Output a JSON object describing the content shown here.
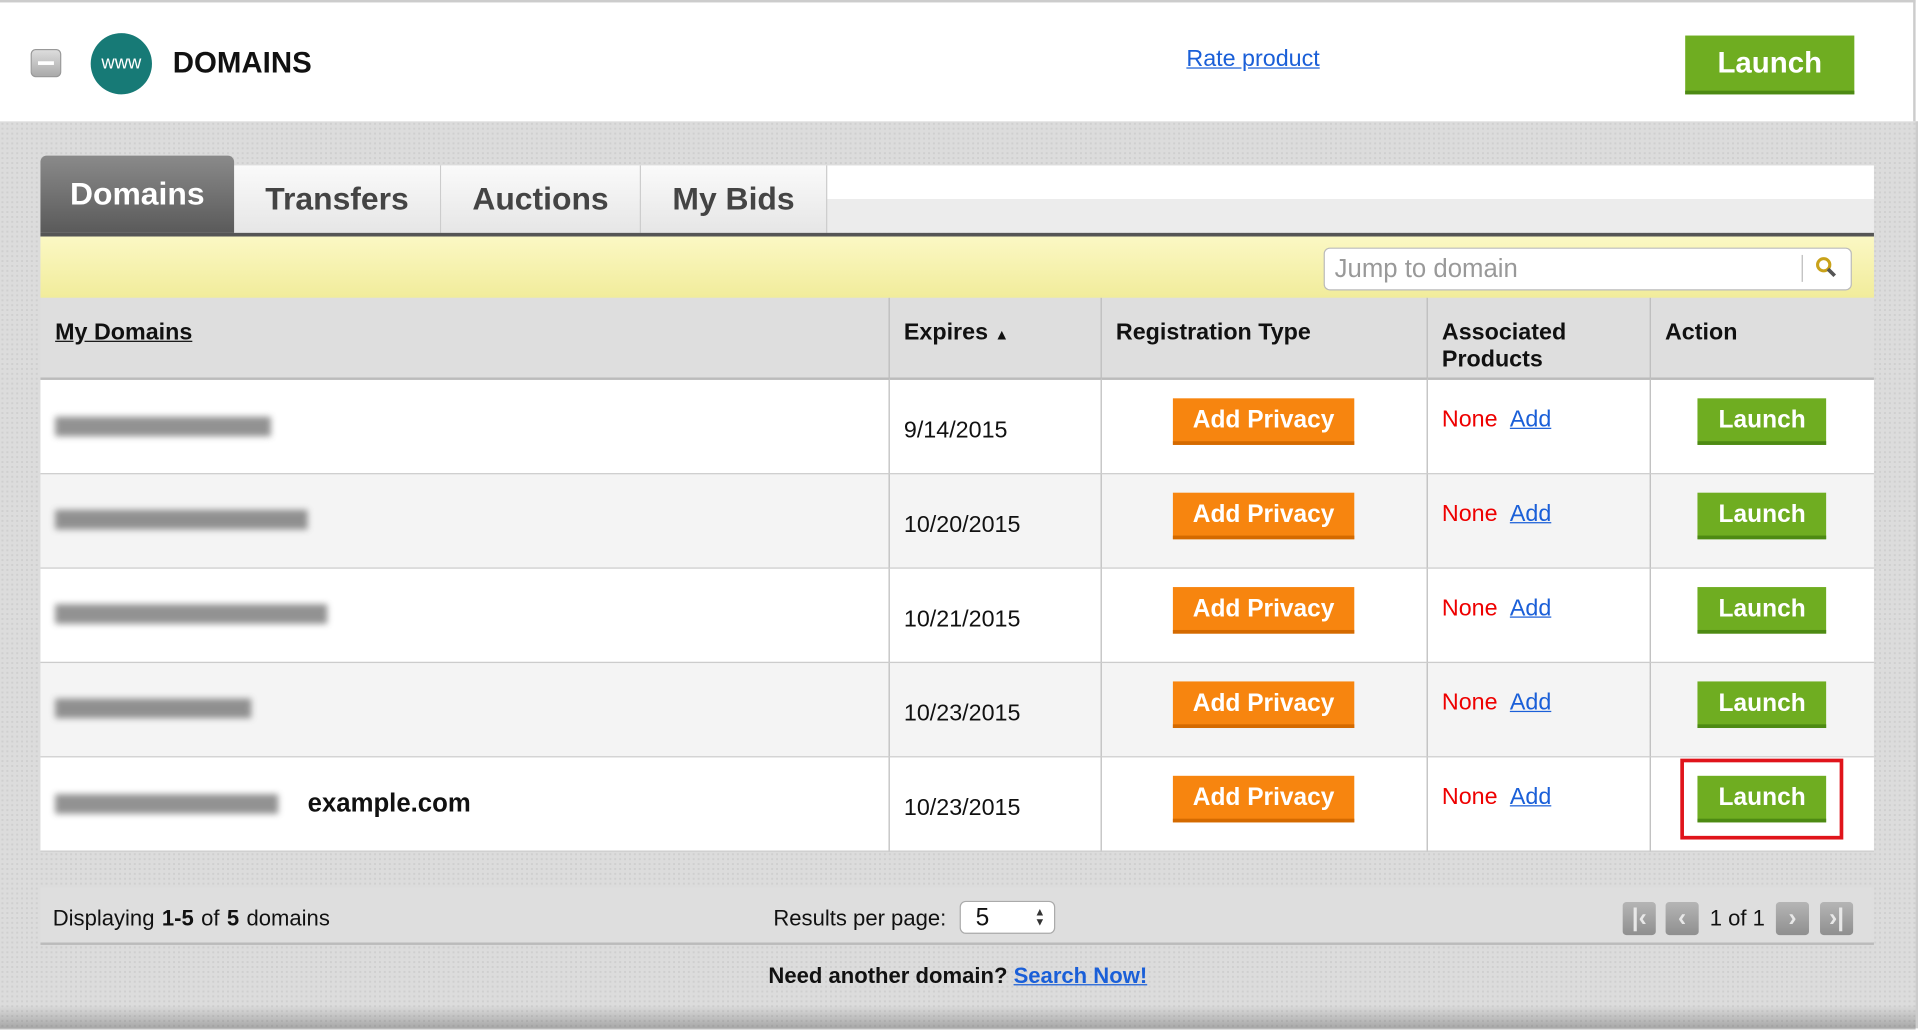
{
  "header": {
    "title": "DOMAINS",
    "logo_text": "www",
    "rate_link": "Rate product",
    "launch_label": "Launch"
  },
  "tabs": [
    {
      "label": "Domains",
      "active": true
    },
    {
      "label": "Transfers"
    },
    {
      "label": "Auctions"
    },
    {
      "label": "My Bids"
    }
  ],
  "search": {
    "placeholder": "Jump to domain"
  },
  "table": {
    "columns": {
      "domain": "My Domains",
      "expires": "Expires",
      "reg_type": "Registration Type",
      "assoc": "Associated Products",
      "action": "Action"
    },
    "rows": [
      {
        "domain_label": "",
        "expires": "9/14/2015",
        "privacy": "Add Privacy",
        "assoc": "None",
        "add": "Add",
        "action": "Launch"
      },
      {
        "domain_label": "",
        "expires": "10/20/2015",
        "privacy": "Add Privacy",
        "assoc": "None",
        "add": "Add",
        "action": "Launch"
      },
      {
        "domain_label": "",
        "expires": "10/21/2015",
        "privacy": "Add Privacy",
        "assoc": "None",
        "add": "Add",
        "action": "Launch"
      },
      {
        "domain_label": "",
        "expires": "10/23/2015",
        "privacy": "Add Privacy",
        "assoc": "None",
        "add": "Add",
        "action": "Launch"
      },
      {
        "domain_label": "example.com",
        "expires": "10/23/2015",
        "privacy": "Add Privacy",
        "assoc": "None",
        "add": "Add",
        "action": "Launch",
        "highlighted": true
      }
    ]
  },
  "footer": {
    "displaying_prefix": "Displaying ",
    "range": "1-5",
    "of": " of ",
    "total": "5",
    "suffix": " domains",
    "rpp_label": "Results per page:",
    "rpp_value": "5",
    "page_text": "1 of 1"
  },
  "bottom": {
    "prompt": "Need another domain?",
    "link": "Search Now!"
  },
  "colors": {
    "launch_green": "#6fad21",
    "privacy_orange": "#f7850f",
    "link_blue": "#1a5fd8",
    "none_red": "#e00000",
    "highlight_red": "#e0141b"
  }
}
